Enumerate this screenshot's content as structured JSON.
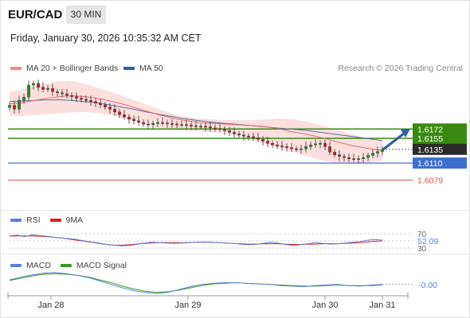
{
  "header": {
    "pair": "EUR/CAD",
    "timeframe": "30 MIN",
    "datetime": "Friday, January 30, 2026 10:35:32 AM CET"
  },
  "legend": {
    "items": [
      {
        "label": "MA 20 + Bollinger Bands",
        "color": "#f08a8a"
      },
      {
        "label": "MA 50",
        "color": "#2f5d9a"
      }
    ],
    "credit": "Research © 2026 Trading Central"
  },
  "colors": {
    "candle_up": "#2b8c2b",
    "candle_down": "#c42121",
    "band_fill": "#fbd9d9",
    "ma20": "#e46a6a",
    "ma50": "#5a6fa6",
    "resistance": "#3a8a12",
    "support_blue": "#3d6fd0",
    "support_red": "#d85555",
    "arrow": "#2e5fa8"
  },
  "chart_data": [
    {
      "type": "candlestick",
      "ylim": [
        1.6045,
        1.6265
      ],
      "x_ticks": [
        "Jan 28",
        "Jan 29",
        "Jan 30",
        "Jan 31"
      ],
      "levels": [
        {
          "value": 1.6172,
          "label": "1.6172",
          "kind": "resistance",
          "style": "box-green"
        },
        {
          "value": 1.6155,
          "label": "1.6155",
          "kind": "resistance",
          "style": "line-green"
        },
        {
          "value": 1.6135,
          "label": "1.6135",
          "kind": "current",
          "style": "box-dark"
        },
        {
          "value": 1.611,
          "label": "1.6110",
          "kind": "support",
          "style": "box-blue"
        },
        {
          "value": 1.6079,
          "label": "1.6079",
          "kind": "support",
          "style": "text-red"
        }
      ],
      "close_series": [
        1.6215,
        1.6208,
        1.6224,
        1.623,
        1.6252,
        1.6255,
        1.6248,
        1.6244,
        1.6246,
        1.624,
        1.6238,
        1.6236,
        1.6233,
        1.6231,
        1.6228,
        1.6226,
        1.6224,
        1.6222,
        1.6219,
        1.6216,
        1.6212,
        1.6208,
        1.6203,
        1.6198,
        1.6194,
        1.619,
        1.6187,
        1.6184,
        1.6181,
        1.618,
        1.6182,
        1.6184,
        1.6183,
        1.6182,
        1.6181,
        1.618,
        1.618,
        1.6179,
        1.6178,
        1.6177,
        1.6177,
        1.6176,
        1.6174,
        1.6173,
        1.6172,
        1.6169,
        1.6166,
        1.6163,
        1.6161,
        1.6159,
        1.6158,
        1.6156,
        1.6153,
        1.615,
        1.6146,
        1.6143,
        1.6141,
        1.614,
        1.6138,
        1.6136,
        1.6135,
        1.6136,
        1.614,
        1.6143,
        1.6145,
        1.6146,
        1.614,
        1.613,
        1.6125,
        1.6122,
        1.612,
        1.6118,
        1.6117,
        1.6118,
        1.612,
        1.6124,
        1.6128,
        1.6131,
        1.6135
      ],
      "ma20": [
        1.6218,
        1.6219,
        1.6222,
        1.6225,
        1.6228,
        1.623,
        1.6232,
        1.6232,
        1.6231,
        1.6229,
        1.6226,
        1.6222,
        1.6218,
        1.6213,
        1.6208,
        1.6203,
        1.6198,
        1.6194,
        1.619,
        1.6187,
        1.6185,
        1.6183,
        1.6182,
        1.6181,
        1.618,
        1.6179,
        1.6178,
        1.6177,
        1.6175,
        1.6172,
        1.6168,
        1.6165,
        1.6162,
        1.6158,
        1.6154,
        1.6149,
        1.6145,
        1.6141,
        1.6138,
        1.6135,
        1.6133
      ],
      "ma50": [
        1.6222,
        1.6223,
        1.6224,
        1.6225,
        1.6225,
        1.6224,
        1.6222,
        1.622,
        1.6216,
        1.6212,
        1.6208,
        1.6203,
        1.6199,
        1.6195,
        1.6191,
        1.6188,
        1.6185,
        1.6183,
        1.6181,
        1.6179,
        1.6177,
        1.6175,
        1.6173,
        1.6171,
        1.6169,
        1.6166,
        1.6163,
        1.616,
        1.6157,
        1.6154,
        1.6151
      ],
      "bb_upper": [
        1.624,
        1.6245,
        1.6252,
        1.6258,
        1.626,
        1.6255,
        1.6246,
        1.6238,
        1.6228,
        1.6218,
        1.6208,
        1.6199,
        1.6193,
        1.619,
        1.6189,
        1.6188,
        1.6188,
        1.6189,
        1.6191,
        1.619,
        1.6185,
        1.6178,
        1.617,
        1.6162,
        1.6155,
        1.615
      ],
      "bb_lower": [
        1.6195,
        1.6196,
        1.6198,
        1.62,
        1.6202,
        1.6203,
        1.6201,
        1.6196,
        1.6189,
        1.6181,
        1.6174,
        1.617,
        1.6168,
        1.6167,
        1.6166,
        1.6163,
        1.6155,
        1.6146,
        1.6138,
        1.613,
        1.6122,
        1.6115,
        1.611,
        1.6108,
        1.611,
        1.6114
      ],
      "forecast": {
        "from": 1.6136,
        "to": 1.6168
      }
    },
    {
      "type": "line",
      "title": "RSI",
      "ylim": [
        30,
        70
      ],
      "levels": [
        70,
        50,
        30
      ],
      "level_labels": [
        "70",
        "30"
      ],
      "current_label": "52.09",
      "series": [
        {
          "name": "RSI",
          "color": "#5b7fd6",
          "values": [
            64,
            66,
            62,
            67,
            65,
            63,
            60,
            58,
            56,
            54,
            50,
            47,
            44,
            40,
            38,
            36,
            37,
            40,
            44,
            46,
            45,
            44,
            43,
            44,
            45,
            46,
            47,
            46,
            45,
            44,
            43,
            41,
            39,
            40,
            43,
            46,
            44,
            40,
            37,
            39,
            42,
            45,
            43,
            41,
            42,
            44,
            46,
            48,
            52,
            54,
            52
          ]
        },
        {
          "name": "9MA",
          "color": "#d42222",
          "values": [
            63,
            64,
            64,
            64,
            63,
            62,
            60,
            58,
            55,
            52,
            49,
            46,
            43,
            40,
            38,
            38,
            39,
            41,
            43,
            44,
            45,
            45,
            45,
            45,
            45,
            46,
            46,
            46,
            45,
            44,
            43,
            42,
            41,
            41,
            42,
            42,
            42,
            41,
            40,
            40,
            41,
            41,
            42,
            42,
            42,
            43,
            44,
            45,
            47,
            49,
            50
          ]
        }
      ]
    },
    {
      "type": "line",
      "title": "MACD",
      "ylim": [
        -0.002,
        0.0025
      ],
      "current_label": "-0.00",
      "series": [
        {
          "name": "MACD",
          "color": "#5b7fd6",
          "values": [
            0.0008,
            0.0013,
            0.0017,
            0.002,
            0.0021,
            0.0019,
            0.0016,
            0.0012,
            0.0006,
            0.0,
            -0.0006,
            -0.0011,
            -0.0014,
            -0.0016,
            -0.0014,
            -0.0009,
            -0.0004,
            0.0,
            0.0002,
            0.0003,
            0.0003,
            0.0002,
            0.0001,
            0.0,
            -0.0002,
            -0.0003,
            -0.0004,
            -0.0002,
            -0.0001,
            0.0,
            -0.0002,
            -0.0003,
            -0.0001,
            0.0
          ]
        },
        {
          "name": "MACD Signal",
          "color": "#3a9a1a",
          "values": [
            0.0007,
            0.0011,
            0.0015,
            0.0018,
            0.0019,
            0.0018,
            0.0016,
            0.0013,
            0.0008,
            0.0003,
            -0.0003,
            -0.0008,
            -0.0012,
            -0.0014,
            -0.0013,
            -0.001,
            -0.0006,
            -0.0002,
            0.0001,
            0.0002,
            0.0003,
            0.0002,
            0.0001,
            0.0,
            -0.0001,
            -0.0002,
            -0.0003,
            -0.0003,
            -0.0002,
            -0.0001,
            -0.0002,
            -0.0002,
            -0.0002,
            -0.0001
          ]
        }
      ]
    }
  ]
}
